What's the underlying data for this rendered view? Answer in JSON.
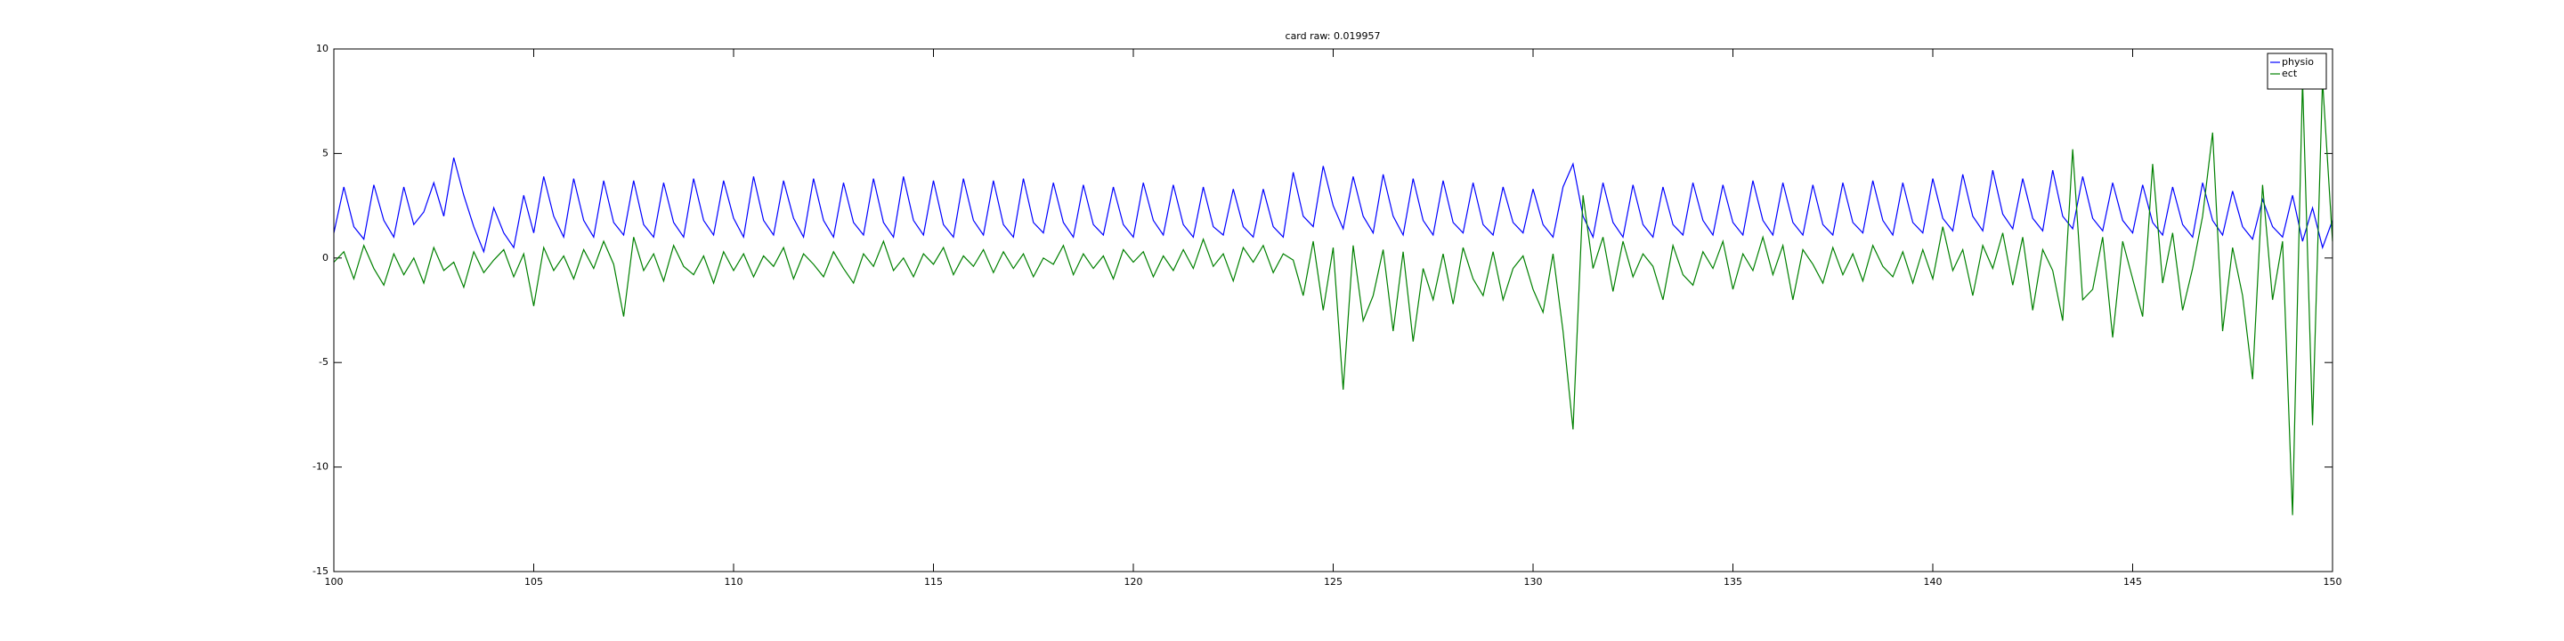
{
  "chart_data": {
    "type": "line",
    "title": "card raw: 0.019957",
    "x": [
      100,
      100.25,
      100.5,
      100.75,
      101,
      101.25,
      101.5,
      101.75,
      102,
      102.25,
      102.5,
      102.75,
      103,
      103.25,
      103.5,
      103.75,
      104,
      104.25,
      104.5,
      104.75,
      105,
      105.25,
      105.5,
      105.75,
      106,
      106.25,
      106.5,
      106.75,
      107,
      107.25,
      107.5,
      107.75,
      108,
      108.25,
      108.5,
      108.75,
      109,
      109.25,
      109.5,
      109.75,
      110,
      110.25,
      110.5,
      110.75,
      111,
      111.25,
      111.5,
      111.75,
      112,
      112.25,
      112.5,
      112.75,
      113,
      113.25,
      113.5,
      113.75,
      114,
      114.25,
      114.5,
      114.75,
      115,
      115.25,
      115.5,
      115.75,
      116,
      116.25,
      116.5,
      116.75,
      117,
      117.25,
      117.5,
      117.75,
      118,
      118.25,
      118.5,
      118.75,
      119,
      119.25,
      119.5,
      119.75,
      120,
      120.25,
      120.5,
      120.75,
      121,
      121.25,
      121.5,
      121.75,
      122,
      122.25,
      122.5,
      122.75,
      123,
      123.25,
      123.5,
      123.75,
      124,
      124.25,
      124.5,
      124.75,
      125,
      125.25,
      125.5,
      125.75,
      126,
      126.25,
      126.5,
      126.75,
      127,
      127.25,
      127.5,
      127.75,
      128,
      128.25,
      128.5,
      128.75,
      129,
      129.25,
      129.5,
      129.75,
      130,
      130.25,
      130.5,
      130.75,
      131,
      131.25,
      131.5,
      131.75,
      132,
      132.25,
      132.5,
      132.75,
      133,
      133.25,
      133.5,
      133.75,
      134,
      134.25,
      134.5,
      134.75,
      135,
      135.25,
      135.5,
      135.75,
      136,
      136.25,
      136.5,
      136.75,
      137,
      137.25,
      137.5,
      137.75,
      138,
      138.25,
      138.5,
      138.75,
      139,
      139.25,
      139.5,
      139.75,
      140,
      140.25,
      140.5,
      140.75,
      141,
      141.25,
      141.5,
      141.75,
      142,
      142.25,
      142.5,
      142.75,
      143,
      143.25,
      143.5,
      143.75,
      144,
      144.25,
      144.5,
      144.75,
      145,
      145.25,
      145.5,
      145.75,
      146,
      146.25,
      146.5,
      146.75,
      147,
      147.25,
      147.5,
      147.75,
      148,
      148.25,
      148.5,
      148.75,
      149,
      149.25,
      149.5,
      149.75,
      150
    ],
    "series": [
      {
        "name": "physio",
        "color": "#0000ff",
        "values": [
          1.2,
          3.4,
          1.5,
          0.9,
          3.5,
          1.8,
          1.0,
          3.4,
          1.6,
          2.2,
          3.6,
          2.0,
          4.8,
          3.0,
          1.5,
          0.3,
          2.4,
          1.2,
          0.5,
          3.0,
          1.2,
          3.9,
          2.0,
          1.0,
          3.8,
          1.8,
          1.0,
          3.7,
          1.7,
          1.1,
          3.7,
          1.6,
          1.0,
          3.6,
          1.7,
          1.0,
          3.8,
          1.8,
          1.1,
          3.7,
          1.9,
          1.0,
          3.9,
          1.8,
          1.1,
          3.7,
          1.9,
          1.0,
          3.8,
          1.8,
          1.0,
          3.6,
          1.7,
          1.1,
          3.8,
          1.7,
          1.0,
          3.9,
          1.8,
          1.1,
          3.7,
          1.6,
          1.0,
          3.8,
          1.8,
          1.1,
          3.7,
          1.6,
          1.0,
          3.8,
          1.7,
          1.2,
          3.6,
          1.7,
          1.0,
          3.5,
          1.6,
          1.1,
          3.4,
          1.6,
          1.0,
          3.6,
          1.8,
          1.1,
          3.5,
          1.6,
          1.0,
          3.4,
          1.5,
          1.1,
          3.3,
          1.5,
          1.0,
          3.3,
          1.5,
          1.0,
          4.1,
          2.0,
          1.5,
          4.4,
          2.5,
          1.4,
          3.9,
          2.0,
          1.2,
          4.0,
          2.0,
          1.1,
          3.8,
          1.8,
          1.1,
          3.7,
          1.7,
          1.2,
          3.6,
          1.6,
          1.1,
          3.4,
          1.7,
          1.2,
          3.3,
          1.6,
          1.0,
          3.4,
          4.5,
          2.0,
          1.0,
          3.6,
          1.7,
          1.0,
          3.5,
          1.6,
          1.0,
          3.4,
          1.6,
          1.1,
          3.6,
          1.8,
          1.1,
          3.5,
          1.7,
          1.1,
          3.7,
          1.8,
          1.1,
          3.6,
          1.7,
          1.1,
          3.5,
          1.6,
          1.1,
          3.6,
          1.7,
          1.2,
          3.7,
          1.8,
          1.1,
          3.6,
          1.7,
          1.2,
          3.8,
          1.9,
          1.3,
          4.0,
          2.0,
          1.3,
          4.2,
          2.1,
          1.4,
          3.8,
          1.9,
          1.3,
          4.2,
          2.0,
          1.4,
          3.9,
          1.9,
          1.3,
          3.6,
          1.8,
          1.2,
          3.5,
          1.7,
          1.1,
          3.4,
          1.6,
          1.0,
          3.6,
          1.8,
          1.1,
          3.2,
          1.5,
          0.9,
          2.8,
          1.5,
          1.0,
          3.0,
          0.8,
          2.4,
          0.5,
          1.8
        ]
      },
      {
        "name": "ect",
        "color": "#008000",
        "values": [
          -0.2,
          0.3,
          -1.0,
          0.6,
          -0.5,
          -1.3,
          0.2,
          -0.8,
          0.0,
          -1.2,
          0.5,
          -0.6,
          -0.2,
          -1.4,
          0.3,
          -0.7,
          -0.1,
          0.4,
          -0.9,
          0.2,
          -2.3,
          0.5,
          -0.6,
          0.1,
          -1.0,
          0.4,
          -0.5,
          0.8,
          -0.3,
          -2.8,
          1.0,
          -0.6,
          0.2,
          -1.1,
          0.6,
          -0.4,
          -0.8,
          0.1,
          -1.2,
          0.3,
          -0.6,
          0.2,
          -0.9,
          0.1,
          -0.4,
          0.5,
          -1.0,
          0.2,
          -0.3,
          -0.9,
          0.3,
          -0.5,
          -1.2,
          0.2,
          -0.4,
          0.8,
          -0.6,
          0.0,
          -0.9,
          0.2,
          -0.3,
          0.5,
          -0.8,
          0.1,
          -0.4,
          0.4,
          -0.7,
          0.3,
          -0.5,
          0.2,
          -0.9,
          0.0,
          -0.3,
          0.6,
          -0.8,
          0.2,
          -0.5,
          0.1,
          -1.0,
          0.4,
          -0.2,
          0.3,
          -0.9,
          0.1,
          -0.6,
          0.4,
          -0.5,
          0.9,
          -0.4,
          0.2,
          -1.1,
          0.5,
          -0.2,
          0.6,
          -0.7,
          0.2,
          -0.1,
          -1.8,
          0.8,
          -2.5,
          0.5,
          -6.3,
          0.6,
          -3.0,
          -1.8,
          0.4,
          -3.5,
          0.3,
          -4.0,
          -0.5,
          -2.0,
          0.2,
          -2.2,
          0.5,
          -1.0,
          -1.8,
          0.3,
          -2.0,
          -0.5,
          0.1,
          -1.5,
          -2.6,
          0.2,
          -3.5,
          -8.2,
          3.0,
          -0.5,
          1.0,
          -1.6,
          0.8,
          -0.9,
          0.2,
          -0.4,
          -2.0,
          0.6,
          -0.8,
          -1.3,
          0.3,
          -0.5,
          0.8,
          -1.5,
          0.2,
          -0.6,
          1.0,
          -0.8,
          0.6,
          -2.0,
          0.4,
          -0.3,
          -1.2,
          0.5,
          -0.8,
          0.2,
          -1.1,
          0.6,
          -0.4,
          -0.9,
          0.3,
          -1.2,
          0.4,
          -1.0,
          1.5,
          -0.6,
          0.4,
          -1.8,
          0.6,
          -0.5,
          1.2,
          -1.3,
          1.0,
          -2.5,
          0.4,
          -0.6,
          -3.0,
          5.2,
          -2.0,
          -1.5,
          1.0,
          -3.8,
          0.8,
          -1.0,
          -2.8,
          4.5,
          -1.2,
          1.2,
          -2.5,
          -0.5,
          2.0,
          6.0,
          -3.5,
          0.5,
          -1.8,
          -5.8,
          3.5,
          -2.0,
          0.8,
          -12.3,
          8.5,
          -8.0,
          8.5,
          0.8
        ]
      }
    ],
    "xlim": [
      100,
      150
    ],
    "xticks": [
      100,
      105,
      110,
      115,
      120,
      125,
      130,
      135,
      140,
      145,
      150
    ],
    "ylim": [
      -15,
      10
    ],
    "yticks": [
      -15,
      -10,
      -5,
      0,
      5,
      10
    ],
    "legend": "upper right"
  }
}
